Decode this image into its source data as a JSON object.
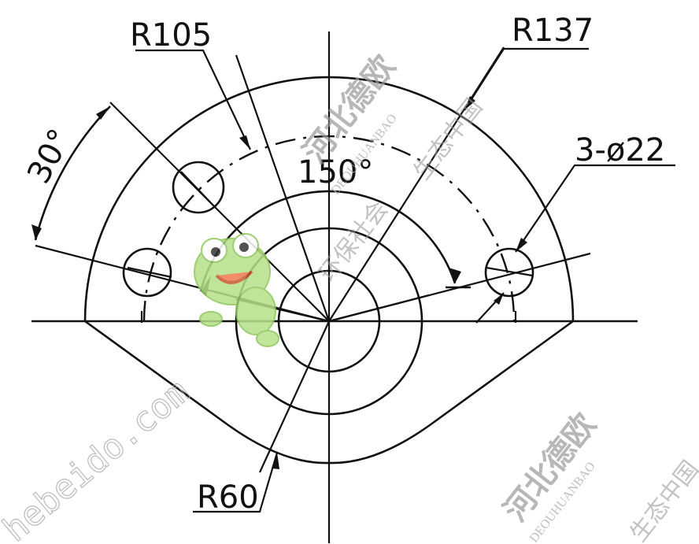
{
  "dimensions": {
    "r105": "R105",
    "r137": "R137",
    "r60": "R60",
    "angle_30": "30°",
    "angle_150": "150°",
    "holes": "3-ø22"
  },
  "watermark": {
    "brand_cn": "河北德欧",
    "brand_pinyin": "DEOUHUANBAO",
    "slogan_1": "生态中国",
    "slogan_2": "环保社会",
    "url": "hebeido.com"
  }
}
